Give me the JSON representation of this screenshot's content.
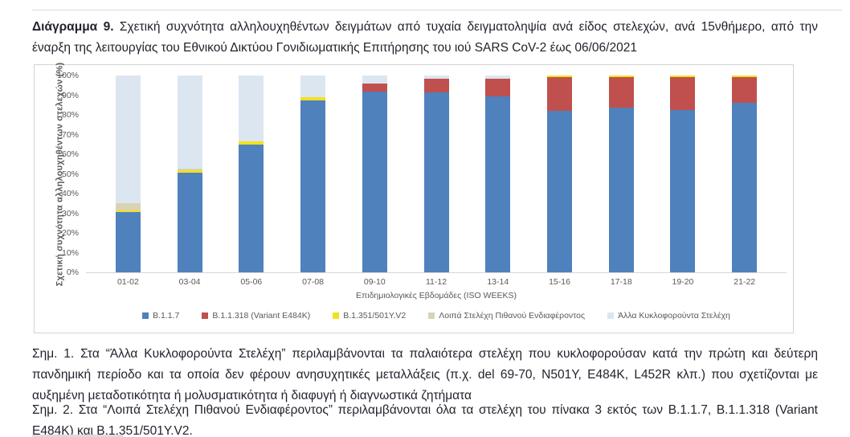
{
  "page": {
    "title_label": "Διάγραμμα 9.",
    "title_text": "Σχετική συχνότητα αλληλουχηθέντων δειγμάτων από τυχαία δειγματοληψία ανά είδος στελεχών, ανά 15νθήμερο, από την έναρξη της λειτουργίας του Εθνικού Δικτύου Γονιδιωματικής Επιτήρησης του ιού SARS CoV-2 έως 06/06/2021",
    "note1": "Σημ. 1. Στα “Άλλα Κυκλοφορούντα Στελέχη” περιλαμβάνονται τα παλαιότερα στελέχη που κυκλοφορούσαν κατά την πρώτη και δεύτερη πανδημική περίοδο και τα οποία δεν φέρουν ανησυχητικές μεταλλάξεις (π.χ. del 69-70, N501Y, E484K, L452R κλπ.) που σχετίζονται με αυξημένη μεταδοτικότητα ή μολυσματικότητα ή διαφυγή ή διαγνωστικά ζητήματα",
    "note2": "Σημ. 2. Στα “Λοιπά Στελέχη Πιθανού Ενδιαφέροντος” περιλαμβάνονται όλα τα στελέχη του πίνακα 3 εκτός των B.1.1.7, B.1.1.318 (Variant E484K) και B.1.351/501Y.V2."
  },
  "chart_data": {
    "type": "bar",
    "stacked": true,
    "unit": "percent",
    "xlabel": "Επιδημιολογικές Εβδομάδες (ISO WEEKS)",
    "ylabel": "Σχετική συχνότητα αλληλουχηθέντων στελεχών (%)",
    "ylim": [
      0,
      100
    ],
    "yticks": [
      "0%",
      "10%",
      "20%",
      "30%",
      "40%",
      "50%",
      "60%",
      "70%",
      "80%",
      "90%",
      "100%"
    ],
    "grid": false,
    "legend_position": "bottom",
    "categories": [
      "01-02",
      "03-04",
      "05-06",
      "07-08",
      "09-10",
      "11-12",
      "13-14",
      "15-16",
      "17-18",
      "19-20",
      "21-22"
    ],
    "series": [
      {
        "name": "B.1.1.7",
        "color": "#4F81BD",
        "values": [
          30.5,
          50.5,
          65,
          87.5,
          92,
          91.5,
          89.5,
          82,
          83.5,
          82.5,
          86
        ]
      },
      {
        "name": "B.1.1.318 (Variant E484K)",
        "color": "#C0504D",
        "values": [
          0,
          0,
          0,
          0,
          4,
          7,
          9,
          17,
          15.5,
          16.5,
          13
        ]
      },
      {
        "name": "B.1.351/501Y.V2",
        "color": "#F2E11C",
        "values": [
          1,
          1.5,
          1.5,
          1.5,
          0,
          0,
          0,
          1,
          1,
          1,
          1
        ]
      },
      {
        "name": "Λοιπά Στελέχη Πιθανού Ενδιαφέροντος",
        "color": "#D9D3B5",
        "values": [
          3.5,
          0.5,
          0,
          0,
          0,
          0,
          0,
          0,
          0,
          0,
          0
        ]
      },
      {
        "name": "Άλλα Κυκλοφορούντα Στελέχη",
        "color": "#DCE6F1",
        "values": [
          65,
          47.5,
          33.5,
          11,
          4,
          1.5,
          1.5,
          0,
          0,
          0,
          0
        ]
      }
    ],
    "axis_text_color": "#595959"
  }
}
